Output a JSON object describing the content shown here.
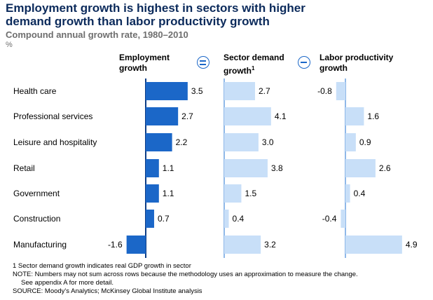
{
  "title_line1": "Employment growth is highest in sectors with higher",
  "title_line2": "demand growth than labor productivity growth",
  "subtitle": "Compound annual growth rate, 1980–2010",
  "unit": "%",
  "panels": [
    {
      "head1": "Employment",
      "head2": "growth",
      "sup": ""
    },
    {
      "head1": "Sector demand",
      "head2": "growth",
      "sup": "1"
    },
    {
      "head1": "Labor productivity",
      "head2": "growth",
      "sup": ""
    }
  ],
  "operators": [
    "equals-icon",
    "minus-icon"
  ],
  "footnotes": {
    "note1": "1 Sector demand growth indicates real GDP growth in sector",
    "note2": "NOTE: Numbers may not sum across rows because the methodology uses an approximation to measure the change.",
    "note3": "See appendix A for more detail.",
    "source": "SOURCE: Moody's Analytics; McKinsey Global Institute analysis"
  },
  "colors": {
    "employment": "#1b67c8",
    "other": "#c8dff8",
    "title": "#0b2a5b"
  },
  "chart_data": {
    "type": "bar",
    "orientation": "horizontal",
    "categories": [
      "Health care",
      "Professional services",
      "Leisure and hospitality",
      "Retail",
      "Government",
      "Construction",
      "Manufacturing"
    ],
    "series": [
      {
        "name": "Employment growth",
        "values": [
          3.5,
          2.7,
          2.2,
          1.1,
          1.1,
          0.7,
          -1.6
        ]
      },
      {
        "name": "Sector demand growth",
        "values": [
          2.7,
          4.1,
          3.0,
          3.8,
          1.5,
          0.4,
          3.2
        ]
      },
      {
        "name": "Labor productivity growth",
        "values": [
          -0.8,
          1.6,
          0.9,
          2.6,
          0.4,
          -0.4,
          4.9
        ]
      }
    ]
  }
}
